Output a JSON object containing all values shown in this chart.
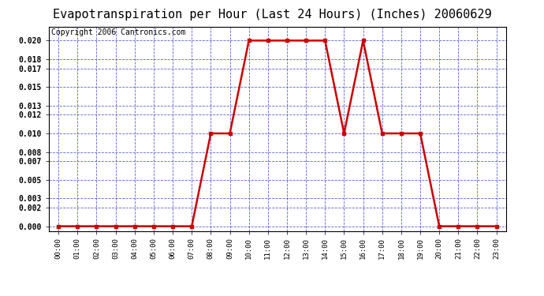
{
  "title": "Evapotranspiration per Hour (Last 24 Hours) (Inches) 20060629",
  "copyright_text": "Copyright 2006 Cantronics.com",
  "hours": [
    "00:00",
    "01:00",
    "02:00",
    "03:00",
    "04:00",
    "05:00",
    "06:00",
    "07:00",
    "08:00",
    "09:00",
    "10:00",
    "11:00",
    "12:00",
    "13:00",
    "14:00",
    "15:00",
    "16:00",
    "17:00",
    "18:00",
    "19:00",
    "20:00",
    "21:00",
    "22:00",
    "23:00"
  ],
  "values": [
    0.0,
    0.0,
    0.0,
    0.0,
    0.0,
    0.0,
    0.0,
    0.0,
    0.01,
    0.01,
    0.02,
    0.02,
    0.02,
    0.02,
    0.02,
    0.01,
    0.02,
    0.01,
    0.01,
    0.01,
    0.0,
    0.0,
    0.0,
    0.0
  ],
  "line_color": "#cc0000",
  "marker_color": "#cc0000",
  "background_color": "#ffffff",
  "plot_bg_color": "#ffffff",
  "grid_color": "#4444cc",
  "title_fontsize": 11,
  "copyright_fontsize": 7,
  "ylim": [
    -0.0005,
    0.0215
  ],
  "yticks": [
    0.0,
    0.002,
    0.003,
    0.005,
    0.007,
    0.008,
    0.01,
    0.012,
    0.013,
    0.015,
    0.017,
    0.018,
    0.02
  ]
}
